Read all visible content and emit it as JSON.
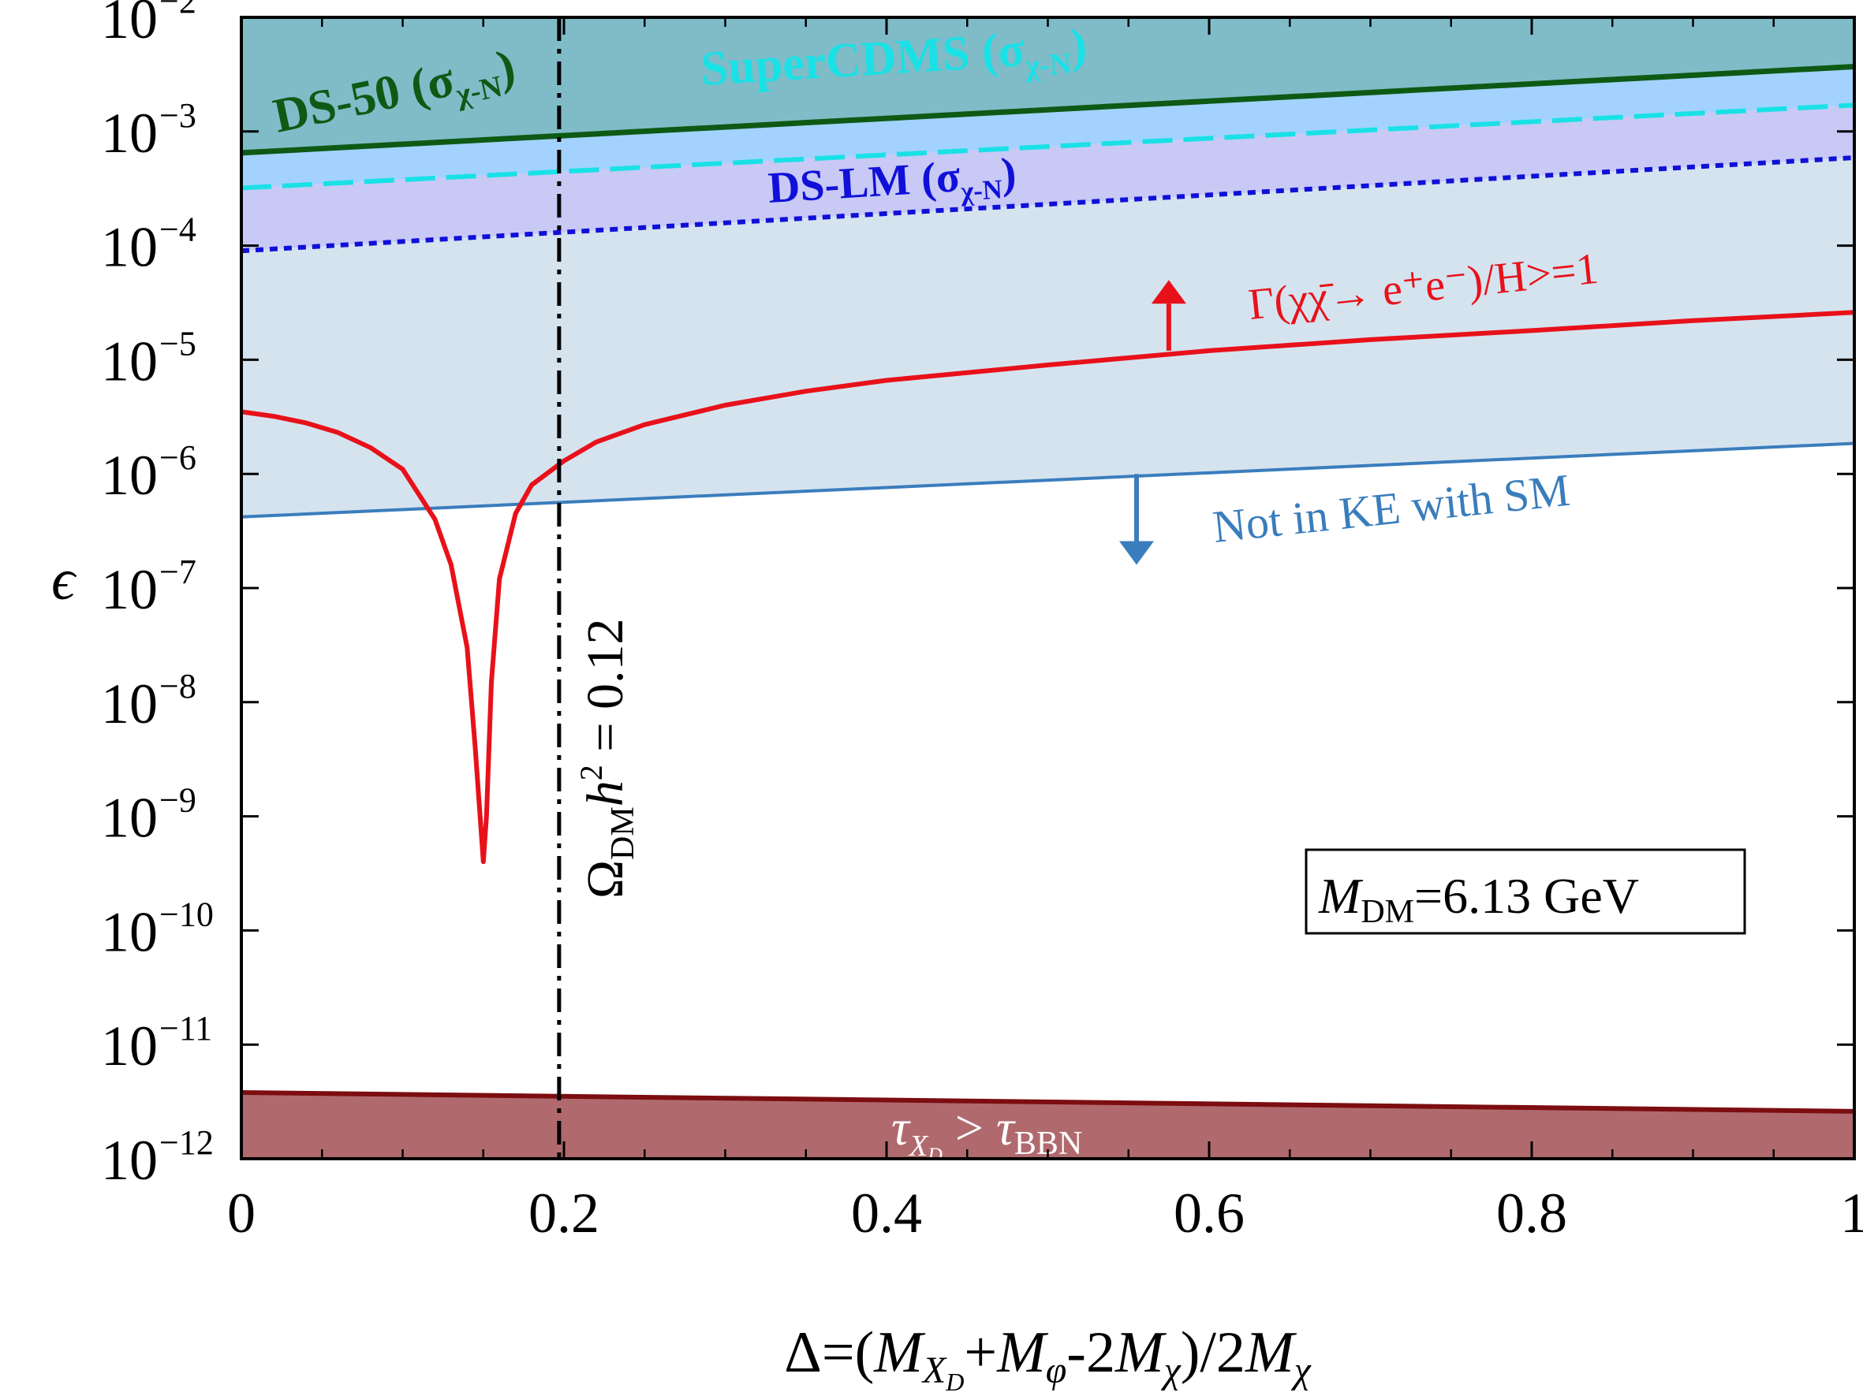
{
  "chart_data": {
    "type": "line",
    "x_scale": "linear",
    "y_scale": "log",
    "xlim": [
      0,
      1
    ],
    "ylim": [
      1e-12,
      0.01
    ],
    "x_ticks": [
      "0",
      "0.2",
      "0.4",
      "0.6",
      "0.8",
      "1"
    ],
    "x_tick_values": [
      0,
      0.2,
      0.4,
      0.6,
      0.8,
      1.0
    ],
    "y_tick_base": "10",
    "y_tick_exponents": [
      "−2",
      "−3",
      "−4",
      "−5",
      "−6",
      "−7",
      "−8",
      "−9",
      "−10",
      "−11",
      "−12"
    ],
    "y_tick_powers": [
      -2,
      -3,
      -4,
      -5,
      -6,
      -7,
      -8,
      -9,
      -10,
      -11,
      -12
    ],
    "xlabel": "Δ=(M_XD+M_φ-2M_χ)/2M_χ",
    "xlabel_parts": {
      "a": "Δ=(",
      "m1": "M",
      "s1": "X",
      "s1b": "D",
      "b": "+",
      "m2": "M",
      "s2": "φ",
      "c": "-2",
      "m3": "M",
      "s3": "χ",
      "d": ")/2",
      "m4": "M",
      "s4": "χ"
    },
    "ylabel": "ϵ",
    "series": [
      {
        "name": "DS-50 (σχ-N)",
        "color": "#0d5a14",
        "style": "solid",
        "x": [
          0,
          1
        ],
        "y": [
          0.00065,
          0.0037
        ]
      },
      {
        "name": "SuperCDMS (σχ-N)",
        "color": "#19e1e6",
        "style": "dashed",
        "x": [
          0,
          1
        ],
        "y": [
          0.00032,
          0.0017
        ]
      },
      {
        "name": "DS-LM (σχ-N)",
        "color": "#1010d8",
        "style": "dotted",
        "x": [
          0,
          1
        ],
        "y": [
          9e-05,
          0.00059
        ]
      },
      {
        "name": "Γ(χχ̄→ e⁺e⁻)/H>=1",
        "color": "#e8111a",
        "style": "solid",
        "x": [
          0,
          0.02,
          0.04,
          0.06,
          0.08,
          0.1,
          0.12,
          0.13,
          0.14,
          0.145,
          0.148,
          0.15,
          0.152,
          0.155,
          0.16,
          0.17,
          0.18,
          0.2,
          0.22,
          0.25,
          0.3,
          0.35,
          0.4,
          0.5,
          0.6,
          0.7,
          0.8,
          0.9,
          1.0
        ],
        "y": [
          3.5e-06,
          3.2e-06,
          2.8e-06,
          2.3e-06,
          1.7e-06,
          1.1e-06,
          4e-07,
          1.6e-07,
          3e-08,
          4e-09,
          1e-09,
          4e-10,
          1e-09,
          1.5e-08,
          1.2e-07,
          4.5e-07,
          8e-07,
          1.3e-06,
          1.9e-06,
          2.7e-06,
          4e-06,
          5.3e-06,
          6.6e-06,
          9e-06,
          1.2e-05,
          1.5e-05,
          1.8e-05,
          2.2e-05,
          2.6e-05
        ]
      },
      {
        "name": "Not in KE with SM",
        "color": "#3a7dbd",
        "style": "solid",
        "x": [
          0,
          1
        ],
        "y": [
          4.2e-07,
          1.85e-06
        ]
      },
      {
        "name": "τXD > τBBN",
        "color": "#7c0d10",
        "style": "solid",
        "x": [
          0,
          1
        ],
        "y": [
          3.8e-12,
          2.6e-12
        ]
      }
    ],
    "vertical_line": {
      "x": 0.197,
      "color": "#000000",
      "style": "dash-dot",
      "label_parts": {
        "a": "Ω",
        "b": "DM",
        "c": "h",
        "d": "2",
        "e": " = 0.12"
      }
    },
    "arrows": [
      {
        "x": 0.575,
        "y_from": 1.2e-05,
        "y_to": 5e-05,
        "color": "#e8111a",
        "direction": "up"
      },
      {
        "x": 0.555,
        "y_from": 1e-06,
        "y_to": 1.6e-07,
        "color": "#3a7dbd",
        "direction": "down"
      }
    ],
    "regions": {
      "top_fill": "#7fbcc8",
      "mid_fill": "#a3d2ff",
      "low_fill": "#c8c9f5",
      "ke_fill": "#d5e3ef",
      "bbn_fill": "#b06a6e"
    },
    "annotations": {
      "ds50": {
        "main": "DS-50 (σ",
        "sub": "χ-N",
        "end": ")"
      },
      "supercdms": {
        "main": "SuperCDMS (σ",
        "sub": "χ-N",
        "end": ")"
      },
      "dslm": {
        "main": "DS-LM (σ",
        "sub": "χ-N",
        "end": ")"
      },
      "gamma": "Γ(χχ̄→ e⁺e⁻)/H>=1",
      "ke": "Not in KE with SM",
      "bbn": {
        "t1": "τ",
        "s1": "X",
        "s1b": "D",
        "op": " > ",
        "t2": "τ",
        "s2": "BBN"
      },
      "mass_box": {
        "m": "M",
        "sub": "DM",
        "val": "=6.13 GeV"
      }
    }
  }
}
